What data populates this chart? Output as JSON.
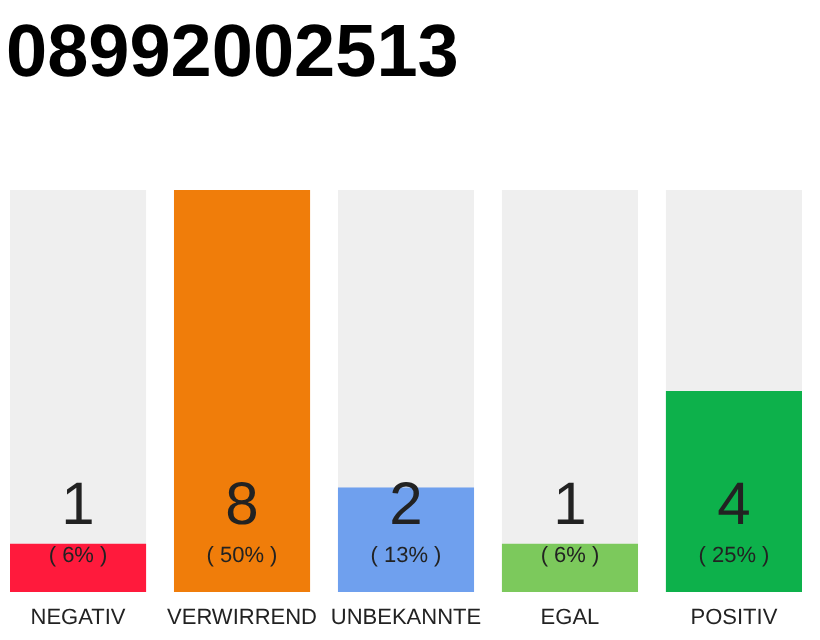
{
  "chart_data": {
    "type": "bar",
    "title": "08992002513",
    "categories": [
      "NEGATIV",
      "VERWIRREND",
      "UNBEKANNTE",
      "EGAL",
      "POSITIV"
    ],
    "values": [
      6,
      50,
      13,
      6,
      25
    ],
    "colors": [
      "#ff1a3c",
      "#f07d0a",
      "#6fa0ee",
      "#7cc95c",
      "#0db14b"
    ],
    "tick_labels": "x",
    "value_labels": [
      "( 6% )",
      "( 50% )",
      "( 13% )",
      "( 6% )",
      "( 25% )"
    ],
    "annotations": [
      "1",
      "8",
      "2",
      "1",
      "4"
    ]
  }
}
